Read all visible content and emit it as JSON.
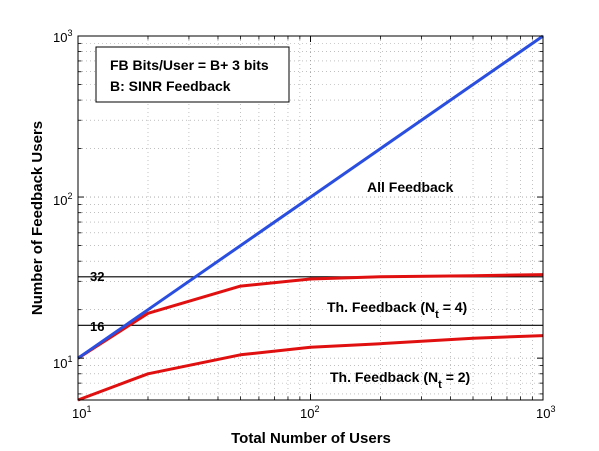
{
  "chart_data": {
    "type": "line",
    "x_scale": "log",
    "y_scale": "log",
    "xlim": [
      10,
      1000
    ],
    "ylim": [
      5.5,
      1000
    ],
    "xlabel": "Total Number of Users",
    "ylabel": "Number of Feedback Users",
    "x_ticks": [
      {
        "base": "10",
        "exp": "1",
        "value": 10
      },
      {
        "base": "10",
        "exp": "2",
        "value": 100
      },
      {
        "base": "10",
        "exp": "3",
        "value": 1000
      }
    ],
    "y_ticks": [
      {
        "base": "10",
        "exp": "1",
        "value": 10
      },
      {
        "base": "10",
        "exp": "2",
        "value": 100
      },
      {
        "base": "10",
        "exp": "3",
        "value": 1000
      }
    ],
    "grid": true,
    "legend_box": {
      "line1": "FB Bits/User = B+ 3 bits",
      "line2": "B: SINR Feedback"
    },
    "series": [
      {
        "color": "#2a4fe0",
        "x": [
          10,
          20,
          50,
          100,
          200,
          500,
          1000
        ],
        "y": [
          10,
          20,
          50,
          100,
          200,
          500,
          1000
        ]
      },
      {
        "color": "#e01010",
        "x": [
          10,
          20,
          50,
          100,
          200,
          500,
          1000
        ],
        "y": [
          10,
          19,
          28,
          31,
          32,
          32.5,
          33
        ]
      },
      {
        "color": "#e01010",
        "x": [
          10,
          20,
          50,
          100,
          200,
          500,
          1000
        ],
        "y": [
          5.5,
          8,
          10.5,
          11.7,
          12.3,
          13.3,
          13.8
        ]
      },
      {
        "color": "#000000",
        "x": [
          10,
          1000
        ],
        "y": [
          32,
          32
        ]
      },
      {
        "color": "#000000",
        "x": [
          10,
          1000
        ],
        "y": [
          16,
          16
        ]
      }
    ],
    "annotations": {
      "all_feedback": "All Feedback",
      "th4_main": "Th. Feedback (N",
      "th4_sub": "t",
      "th4_tail": " = 4)",
      "th2_main": "Th. Feedback (N",
      "th2_sub": "t",
      "th2_tail": " = 2)",
      "ref32": "32",
      "ref16": "16"
    }
  }
}
